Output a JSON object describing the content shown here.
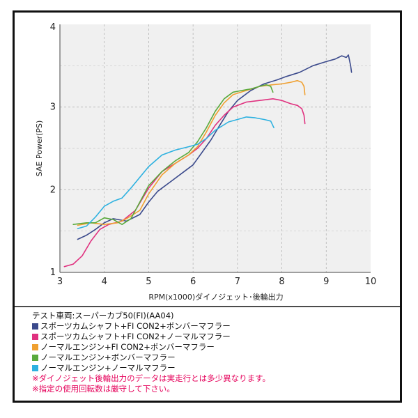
{
  "chart_data": {
    "type": "line",
    "xlabel": "RPM(x1000)ダイノジェット･後輪出力",
    "ylabel": "SAE Power(PS)",
    "xlim": [
      3,
      10
    ],
    "ylim": [
      1,
      4
    ],
    "x_ticks": [
      "3",
      "4",
      "5",
      "6",
      "7",
      "8",
      "9",
      "10"
    ],
    "y_ticks": [
      "1",
      "2",
      "3",
      "4"
    ],
    "grid": "dashed",
    "series": [
      {
        "name": "スポーツカムシャフト+FI CON2+ボンバーマフラー",
        "color": "#3b4a8c",
        "points": [
          [
            3.4,
            1.4
          ],
          [
            3.6,
            1.45
          ],
          [
            3.8,
            1.52
          ],
          [
            4.0,
            1.6
          ],
          [
            4.2,
            1.65
          ],
          [
            4.5,
            1.62
          ],
          [
            4.8,
            1.7
          ],
          [
            5.0,
            1.85
          ],
          [
            5.2,
            1.98
          ],
          [
            5.5,
            2.1
          ],
          [
            5.8,
            2.22
          ],
          [
            6.0,
            2.3
          ],
          [
            6.2,
            2.45
          ],
          [
            6.4,
            2.6
          ],
          [
            6.6,
            2.78
          ],
          [
            6.8,
            2.95
          ],
          [
            7.0,
            3.08
          ],
          [
            7.3,
            3.2
          ],
          [
            7.6,
            3.28
          ],
          [
            7.9,
            3.33
          ],
          [
            8.1,
            3.37
          ],
          [
            8.4,
            3.42
          ],
          [
            8.7,
            3.5
          ],
          [
            9.0,
            3.55
          ],
          [
            9.2,
            3.58
          ],
          [
            9.35,
            3.62
          ],
          [
            9.45,
            3.6
          ],
          [
            9.5,
            3.63
          ],
          [
            9.55,
            3.5
          ],
          [
            9.57,
            3.42
          ]
        ]
      },
      {
        "name": "スポーツカムシャフト+FI CON2+ノーマルマフラー",
        "color": "#e0317f",
        "points": [
          [
            3.1,
            1.07
          ],
          [
            3.3,
            1.1
          ],
          [
            3.5,
            1.2
          ],
          [
            3.7,
            1.38
          ],
          [
            3.9,
            1.52
          ],
          [
            4.1,
            1.58
          ],
          [
            4.4,
            1.62
          ],
          [
            4.7,
            1.75
          ],
          [
            5.0,
            2.02
          ],
          [
            5.3,
            2.22
          ],
          [
            5.6,
            2.32
          ],
          [
            5.9,
            2.42
          ],
          [
            6.1,
            2.5
          ],
          [
            6.3,
            2.62
          ],
          [
            6.5,
            2.78
          ],
          [
            6.7,
            2.9
          ],
          [
            6.9,
            3.0
          ],
          [
            7.2,
            3.06
          ],
          [
            7.5,
            3.08
          ],
          [
            7.8,
            3.1
          ],
          [
            8.0,
            3.08
          ],
          [
            8.2,
            3.04
          ],
          [
            8.35,
            3.02
          ],
          [
            8.45,
            2.98
          ],
          [
            8.5,
            2.9
          ],
          [
            8.52,
            2.8
          ]
        ]
      },
      {
        "name": "ノーマルエンジン+FI CON2+ボンバーマフラー",
        "color": "#f0a030",
        "points": [
          [
            3.4,
            1.57
          ],
          [
            3.7,
            1.6
          ],
          [
            4.0,
            1.58
          ],
          [
            4.3,
            1.6
          ],
          [
            4.5,
            1.65
          ],
          [
            4.8,
            1.75
          ],
          [
            5.0,
            1.95
          ],
          [
            5.3,
            2.18
          ],
          [
            5.6,
            2.32
          ],
          [
            5.9,
            2.42
          ],
          [
            6.1,
            2.52
          ],
          [
            6.3,
            2.7
          ],
          [
            6.5,
            2.9
          ],
          [
            6.7,
            3.05
          ],
          [
            6.9,
            3.15
          ],
          [
            7.2,
            3.2
          ],
          [
            7.5,
            3.25
          ],
          [
            7.8,
            3.27
          ],
          [
            8.0,
            3.28
          ],
          [
            8.2,
            3.3
          ],
          [
            8.35,
            3.32
          ],
          [
            8.45,
            3.3
          ],
          [
            8.5,
            3.25
          ],
          [
            8.52,
            3.15
          ]
        ]
      },
      {
        "name": "ノーマルエンジン+ボンバーマフラー",
        "color": "#5aaa3c",
        "points": [
          [
            3.3,
            1.58
          ],
          [
            3.6,
            1.6
          ],
          [
            3.8,
            1.6
          ],
          [
            4.0,
            1.66
          ],
          [
            4.2,
            1.64
          ],
          [
            4.4,
            1.58
          ],
          [
            4.6,
            1.65
          ],
          [
            4.8,
            1.85
          ],
          [
            5.0,
            2.05
          ],
          [
            5.3,
            2.22
          ],
          [
            5.6,
            2.35
          ],
          [
            5.9,
            2.45
          ],
          [
            6.1,
            2.58
          ],
          [
            6.3,
            2.75
          ],
          [
            6.5,
            2.95
          ],
          [
            6.7,
            3.1
          ],
          [
            6.9,
            3.18
          ],
          [
            7.1,
            3.2
          ],
          [
            7.3,
            3.22
          ],
          [
            7.5,
            3.25
          ],
          [
            7.65,
            3.27
          ],
          [
            7.75,
            3.25
          ],
          [
            7.8,
            3.18
          ]
        ]
      },
      {
        "name": "ノーマルエンジン+ノーマルマフラー",
        "color": "#2db1e0",
        "points": [
          [
            3.4,
            1.53
          ],
          [
            3.6,
            1.56
          ],
          [
            3.8,
            1.67
          ],
          [
            4.0,
            1.8
          ],
          [
            4.2,
            1.86
          ],
          [
            4.4,
            1.9
          ],
          [
            4.6,
            2.02
          ],
          [
            4.8,
            2.15
          ],
          [
            5.0,
            2.28
          ],
          [
            5.3,
            2.42
          ],
          [
            5.6,
            2.48
          ],
          [
            5.9,
            2.52
          ],
          [
            6.1,
            2.55
          ],
          [
            6.3,
            2.62
          ],
          [
            6.5,
            2.72
          ],
          [
            6.8,
            2.82
          ],
          [
            7.0,
            2.85
          ],
          [
            7.2,
            2.88
          ],
          [
            7.4,
            2.87
          ],
          [
            7.6,
            2.85
          ],
          [
            7.75,
            2.83
          ],
          [
            7.82,
            2.75
          ]
        ]
      }
    ]
  },
  "caption": {
    "vehicle": "テスト車両:スーパーカブ50(FI)(AA04)",
    "notes": [
      "※ダイノジェット後輪出力のデータは実走行とは多少異なります。",
      "※指定の使用回転数は厳守して下さい。"
    ]
  }
}
